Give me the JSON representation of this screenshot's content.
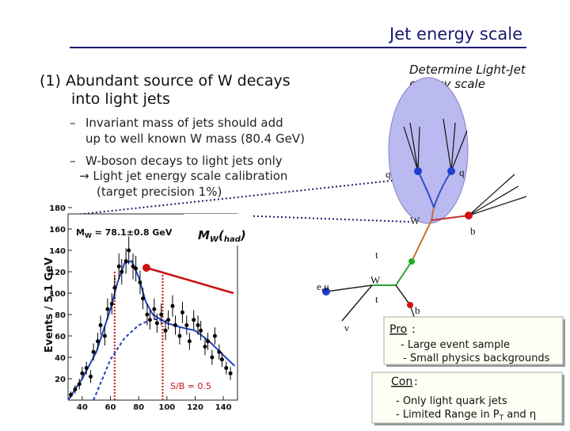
{
  "header": {
    "title": "Jet energy scale"
  },
  "heading": [
    "(1) Abundant source of W decays",
    "into light jets"
  ],
  "note": [
    "Determine Light-Jet",
    "energy scale"
  ],
  "bullets": [
    [
      "–",
      "Invariant mass of jets should add",
      "up to well known W mass (80.4 GeV)"
    ],
    [
      "–",
      "W-boson decays to light jets only",
      "→ Light jet energy scale calibration",
      "(target precision 1%)"
    ]
  ],
  "chart_data": {
    "type": "scatter",
    "y_label": "Events / 5.1 GeV",
    "xlim": [
      30,
      150
    ],
    "ylim": [
      0,
      180
    ],
    "xticks": [
      40,
      60,
      80,
      100,
      120,
      140
    ],
    "yticks": [
      20,
      40,
      60,
      80,
      100,
      120,
      140,
      160,
      180
    ],
    "points": {
      "color": "#000000",
      "x": [
        32,
        35,
        38,
        40,
        43,
        46,
        48,
        51,
        53,
        56,
        58,
        61,
        63,
        66,
        68,
        71,
        73,
        76,
        78,
        81,
        83,
        86,
        88,
        91,
        93,
        96,
        99,
        101,
        104,
        106,
        109,
        111,
        114,
        116,
        119,
        122,
        124,
        127,
        129,
        132,
        134,
        137,
        139,
        142,
        145
      ],
      "values": [
        5,
        10,
        15,
        25,
        30,
        22,
        45,
        55,
        70,
        60,
        85,
        90,
        105,
        125,
        120,
        130,
        140,
        125,
        123,
        110,
        95,
        80,
        75,
        85,
        72,
        80,
        65,
        75,
        88,
        70,
        60,
        82,
        70,
        55,
        75,
        70,
        65,
        50,
        55,
        40,
        60,
        45,
        38,
        30,
        25
      ],
      "errors": [
        3,
        4,
        5,
        6,
        6,
        6,
        8,
        8,
        9,
        9,
        10,
        10,
        11,
        12,
        12,
        12,
        13,
        12,
        12,
        11,
        10,
        10,
        9,
        10,
        9,
        10,
        9,
        9,
        10,
        9,
        8,
        10,
        9,
        8,
        9,
        9,
        9,
        8,
        8,
        7,
        8,
        7,
        7,
        6,
        6
      ]
    },
    "fit": {
      "color": "#1f3fbf",
      "x": [
        30,
        40,
        50,
        60,
        65,
        70,
        75,
        80,
        85,
        90,
        100,
        110,
        120,
        130,
        140,
        148
      ],
      "values": [
        0,
        20,
        45,
        85,
        110,
        128,
        130,
        115,
        92,
        80,
        72,
        68,
        65,
        55,
        42,
        32
      ]
    },
    "background": {
      "color": "#1f3fbf",
      "x": [
        48,
        55,
        60,
        70,
        80,
        90,
        100
      ],
      "values": [
        0,
        22,
        38,
        58,
        70,
        76,
        74
      ]
    },
    "window": {
      "color": "#cc1111",
      "x": [
        63,
        97
      ]
    },
    "fit_mass": {
      "main": "M",
      "sub": "W",
      "rest": " = 78.1±0.8 GeV"
    },
    "process": {
      "main": "M",
      "sub": "W",
      "open": "(",
      "sub2": "had",
      "close": ")"
    },
    "sb": "S/B = 0.5"
  },
  "diagram": {
    "q1": "q",
    "q2": "q",
    "w1": "W",
    "b1": "b",
    "t1": "t",
    "w2": "W",
    "t2": "t",
    "lepton": "e,μ",
    "nu": "ν",
    "b2": "b"
  },
  "pro": {
    "title": "Pro",
    "colon": ":",
    "items": [
      "- Large event sample",
      "- Small physics backgrounds"
    ]
  },
  "con": {
    "title": "Con",
    "colon": ":",
    "items": [
      [
        "- Only light quark jets"
      ],
      [
        "- Limited Range in P",
        "T",
        " and η"
      ]
    ]
  }
}
